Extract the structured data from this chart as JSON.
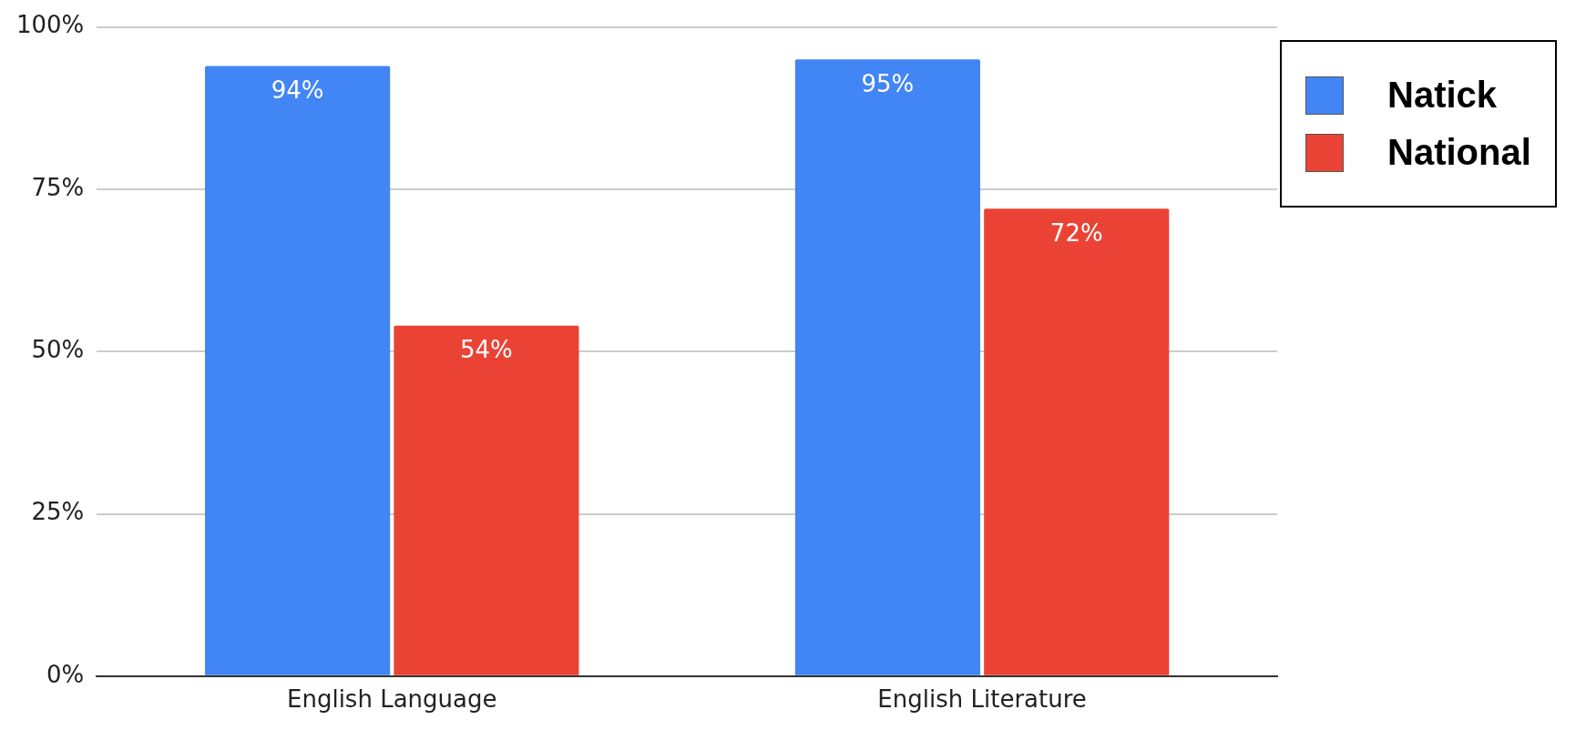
{
  "chart_data": {
    "type": "bar",
    "categories": [
      "English Language",
      "English Literature"
    ],
    "series": [
      {
        "name": "Natick",
        "color": "#4285f4",
        "values": [
          94,
          95
        ],
        "value_labels": [
          "94%",
          "95%"
        ]
      },
      {
        "name": "National",
        "color": "#ea4335",
        "values": [
          54,
          72
        ],
        "value_labels": [
          "54%",
          "72%"
        ]
      }
    ],
    "ylim": [
      0,
      100
    ],
    "yticks": [
      {
        "value": 0,
        "label": "0%"
      },
      {
        "value": 25,
        "label": "25%"
      },
      {
        "value": 50,
        "label": "50%"
      },
      {
        "value": 75,
        "label": "75%"
      },
      {
        "value": 100,
        "label": "100%"
      }
    ],
    "grid": "y",
    "legend": "top right"
  }
}
